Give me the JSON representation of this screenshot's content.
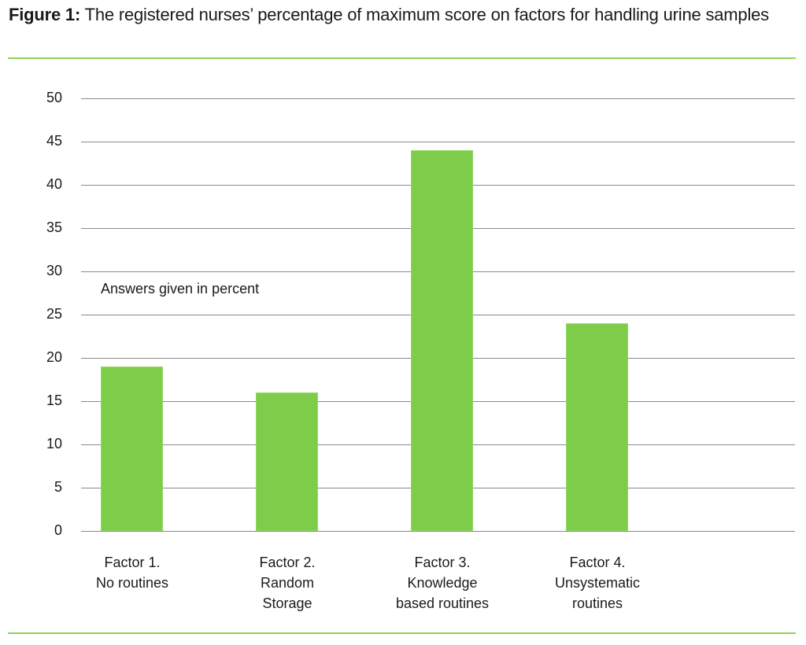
{
  "header": {
    "figure_label": "Figure 1:",
    "title_text": " The registered nurses’ percentage of maximum score on factors for handling urine samples"
  },
  "colors": {
    "bar": "#7ecd4a",
    "rule": "#8fd35a",
    "gridline": "#8a8a8a",
    "text": "#1a1a1a"
  },
  "chart_data": {
    "type": "bar",
    "title": "Figure 1: The registered nurses’ percentage of maximum score on factors for handling urine samples",
    "categories": [
      "Factor 1. No routines",
      "Factor 2. Random Storage",
      "Factor 3. Knowledge based routines",
      "Factor 4. Unsystematic routines"
    ],
    "category_labels_display": [
      "Factor 1.\nNo routines",
      "Factor 2.\nRandom\nStorage",
      "Factor 3.\nKnowledge\nbased routines",
      "Factor 4.\nUnsystematic\nroutines"
    ],
    "values": [
      19,
      16,
      44,
      24
    ],
    "xlabel": "",
    "ylabel": "",
    "ylim": [
      0,
      50
    ],
    "yticks": [
      0,
      5,
      10,
      15,
      20,
      25,
      30,
      35,
      40,
      45,
      50
    ],
    "grid": true,
    "legend": null,
    "annotation": "Answers given in percent"
  }
}
